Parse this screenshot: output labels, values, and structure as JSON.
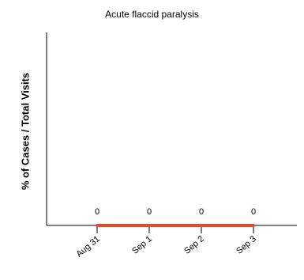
{
  "chart_data": {
    "type": "line",
    "title": "Acute flaccid paralysis",
    "xlabel": "",
    "ylabel": "% of Cases / Total Visits",
    "categories": [
      "Aug 31",
      "Sep 1",
      "Sep 2",
      "Sep 3"
    ],
    "series": [
      {
        "values": [
          0,
          0,
          0,
          0
        ],
        "color": "#e8492a"
      }
    ],
    "data_labels": [
      "0",
      "0",
      "0",
      "0"
    ],
    "grid": false,
    "legend": "none"
  }
}
